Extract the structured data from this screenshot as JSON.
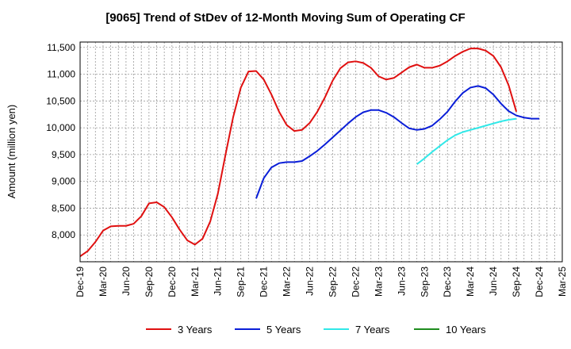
{
  "chart_data": {
    "type": "line",
    "title": "[9065]  Trend of StDev of 12-Month Moving Sum of Operating CF",
    "xlabel": "",
    "ylabel": "Amount (million yen)",
    "ylim": [
      7500,
      11600
    ],
    "y_ticks": [
      8000,
      8500,
      9000,
      9500,
      10000,
      10500,
      11000,
      11500
    ],
    "y_tick_labels": [
      "8,000",
      "8,500",
      "9,000",
      "9,500",
      "10,000",
      "10,500",
      "11,000",
      "11,500"
    ],
    "x_start": "Dec-19",
    "x_end": "Mar-25",
    "x_tick_labels": [
      "Dec-19",
      "Mar-20",
      "Jun-20",
      "Sep-20",
      "Dec-20",
      "Mar-21",
      "Jun-21",
      "Sep-21",
      "Dec-21",
      "Mar-22",
      "Jun-22",
      "Sep-22",
      "Dec-22",
      "Mar-23",
      "Jun-23",
      "Sep-23",
      "Dec-23",
      "Mar-24",
      "Jun-24",
      "Sep-24",
      "Dec-24",
      "Mar-25"
    ],
    "grid": true,
    "legend_position": "bottom",
    "series": [
      {
        "name": "3 Years",
        "color": "#e01010",
        "start": "Dec-19",
        "values": [
          7600,
          7700,
          7870,
          8080,
          8160,
          8170,
          8170,
          8210,
          8350,
          8590,
          8610,
          8520,
          8330,
          8100,
          7900,
          7820,
          7930,
          8250,
          8770,
          9500,
          10200,
          10750,
          11050,
          11060,
          10900,
          10620,
          10300,
          10050,
          9940,
          9960,
          10090,
          10300,
          10570,
          10880,
          11110,
          11220,
          11240,
          11210,
          11120,
          10960,
          10900,
          10930,
          11030,
          11130,
          11180,
          11120,
          11120,
          11160,
          11240,
          11340,
          11420,
          11480,
          11480,
          11440,
          11340,
          11130,
          10790,
          10300
        ]
      },
      {
        "name": "5 Years",
        "color": "#0a1ed8",
        "start": "Nov-21",
        "values": [
          8680,
          9060,
          9260,
          9340,
          9360,
          9360,
          9380,
          9470,
          9570,
          9690,
          9820,
          9950,
          10080,
          10200,
          10290,
          10330,
          10330,
          10280,
          10200,
          10090,
          9990,
          9960,
          9980,
          10040,
          10160,
          10300,
          10490,
          10650,
          10750,
          10780,
          10740,
          10620,
          10450,
          10310,
          10230,
          10190,
          10170,
          10170
        ]
      },
      {
        "name": "7 Years",
        "color": "#30e8e8",
        "start": "Aug-23",
        "values": [
          9320,
          9430,
          9550,
          9660,
          9770,
          9860,
          9920,
          9960,
          10000,
          10040,
          10080,
          10120,
          10150,
          10170
        ]
      },
      {
        "name": "10 Years",
        "color": "#1e8c1e",
        "start": "Sep-24",
        "values": []
      }
    ]
  }
}
